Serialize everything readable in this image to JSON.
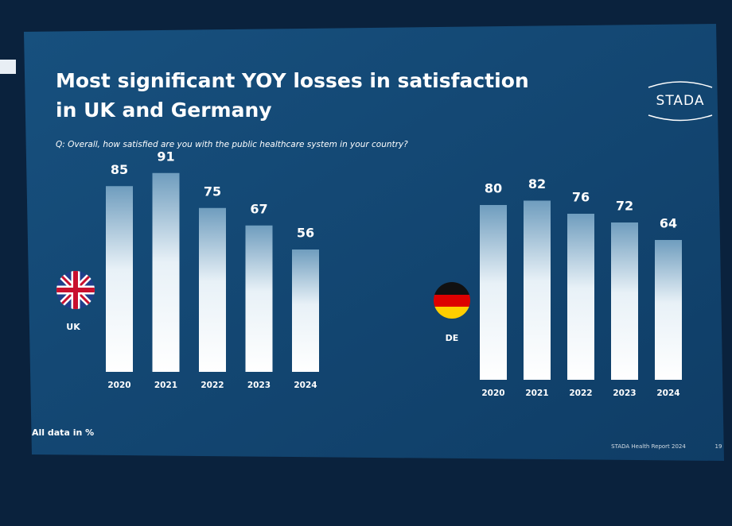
{
  "slide": {
    "title_lines": [
      "Most significant YOY losses in satisfaction",
      "in UK and Germany"
    ],
    "question": "Q: Overall, how satisfied are you with the public healthcare system in your country?",
    "logo": "STADA",
    "note": "All data in %",
    "source": "STADA Health Report 2024",
    "page": "19"
  },
  "chart_data": [
    {
      "type": "bar",
      "label": "UK",
      "categories": [
        "2020",
        "2021",
        "2022",
        "2023",
        "2024"
      ],
      "values": [
        85,
        91,
        75,
        67,
        56
      ]
    },
    {
      "type": "bar",
      "label": "DE",
      "categories": [
        "2020",
        "2021",
        "2022",
        "2023",
        "2024"
      ],
      "values": [
        80,
        82,
        76,
        72,
        64
      ]
    }
  ]
}
